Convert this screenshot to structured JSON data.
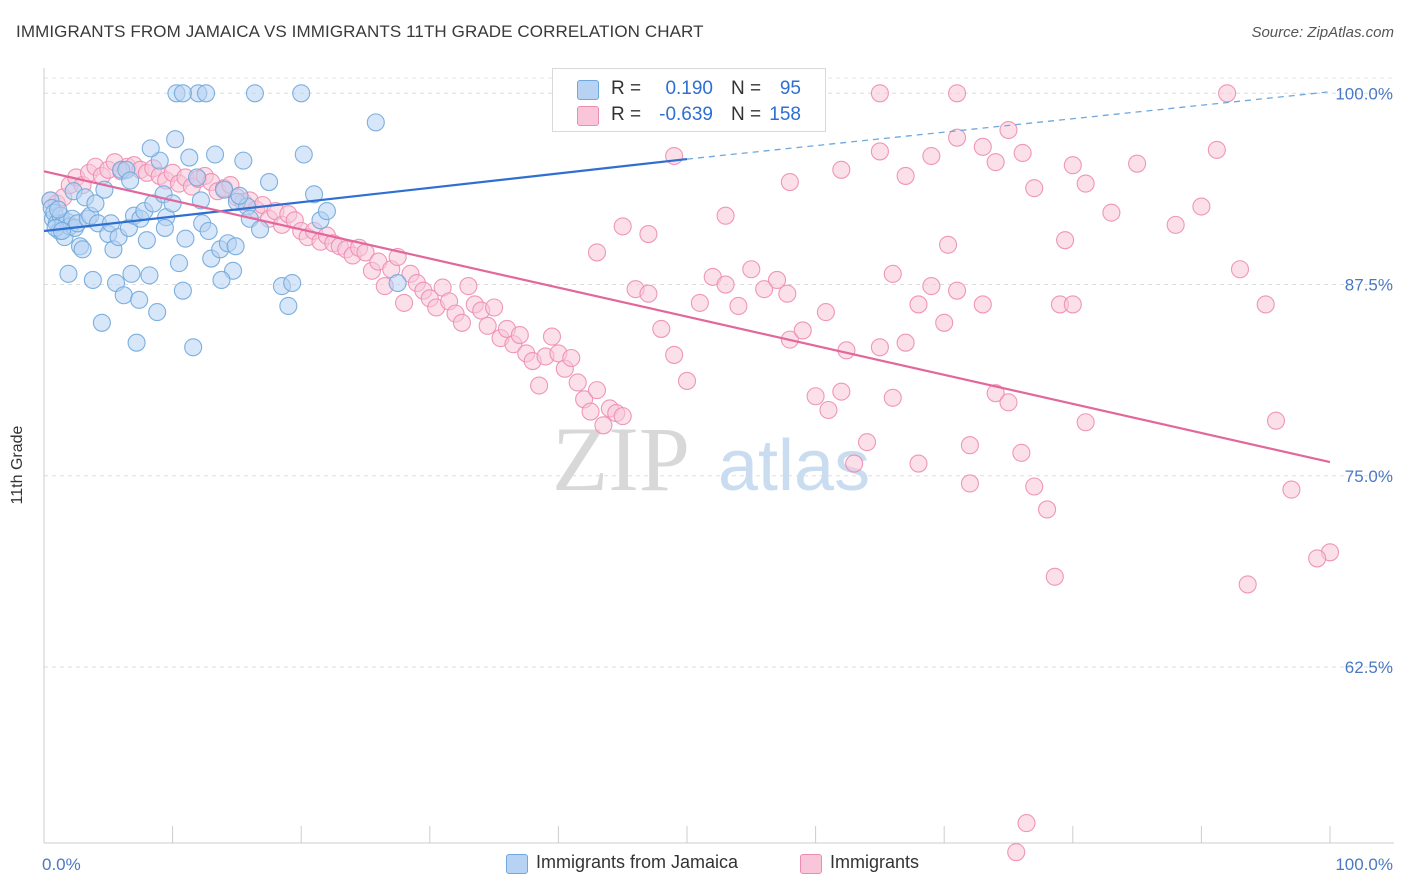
{
  "title": "IMMIGRANTS FROM JAMAICA VS IMMIGRANTS 11TH GRADE CORRELATION CHART",
  "source": "Source: ZipAtlas.com",
  "watermark": {
    "zip": "ZIP",
    "atlas": "atlas"
  },
  "colors": {
    "blue": "#6fa8dc",
    "blue_fill": "#b7d2f3",
    "blue_line": "#2f6fd1",
    "pink": "#ee8cb0",
    "pink_fill": "#f8c6d8",
    "pink_line": "#e2679a",
    "axis_label": "#4a79c4",
    "grid": "#dddddd"
  },
  "legend": {
    "r_label": "R =",
    "n_label": "N =",
    "rows": [
      {
        "r": "0.190",
        "n": "95",
        "color": "#b7d2f3",
        "border": "#6fa8dc"
      },
      {
        "r": "-0.639",
        "n": "158",
        "color": "#f8c6d8",
        "border": "#ee8cb0"
      }
    ]
  },
  "bottom_legend": [
    {
      "label": "Immigrants from Jamaica",
      "color": "#b7d2f3",
      "border": "#6fa8dc"
    },
    {
      "label": "Immigrants",
      "color": "#f8c6d8",
      "border": "#ee8cb0"
    }
  ],
  "chart_data": {
    "type": "scatter",
    "title": "IMMIGRANTS FROM JAMAICA VS IMMIGRANTS 11TH GRADE CORRELATION CHART",
    "xlabel": "",
    "ylabel": "11th Grade",
    "xlim": [
      0,
      100
    ],
    "ylim": [
      51,
      101
    ],
    "x_tick_labels": [
      {
        "value": 0,
        "label": "0.0%"
      },
      {
        "value": 100,
        "label": "100.0%"
      }
    ],
    "y_tick_labels": [
      {
        "value": 100,
        "label": "100.0%"
      },
      {
        "value": 87.5,
        "label": "87.5%"
      },
      {
        "value": 75,
        "label": "75.0%"
      },
      {
        "value": 62.5,
        "label": "62.5%"
      }
    ],
    "grid": "horizontal dashed",
    "legend_placement": "top-center",
    "series": [
      {
        "name": "Immigrants from Jamaica",
        "color": "#6fa8dc",
        "r": 0.19,
        "n": 95,
        "trend": {
          "x": [
            0,
            50
          ],
          "y": [
            91.0,
            95.7
          ],
          "dashed_to": [
            100,
            100.1
          ]
        },
        "points": [
          [
            0.5,
            93
          ],
          [
            0.6,
            92.5
          ],
          [
            0.7,
            91.8
          ],
          [
            0.8,
            92.2
          ],
          [
            1,
            91.5
          ],
          [
            1.2,
            91
          ],
          [
            1.3,
            92
          ],
          [
            1.5,
            91.5
          ],
          [
            1.6,
            90.6
          ],
          [
            1.8,
            91.6
          ],
          [
            2,
            91.3
          ],
          [
            2.2,
            91.8
          ],
          [
            2.4,
            91.2
          ],
          [
            2.6,
            91.5
          ],
          [
            1.1,
            92.4
          ],
          [
            0.9,
            91.2
          ],
          [
            1.4,
            91.0
          ],
          [
            1.9,
            88.2
          ],
          [
            2.3,
            93.6
          ],
          [
            2.8,
            90.0
          ],
          [
            3,
            89.8
          ],
          [
            3.2,
            93.2
          ],
          [
            3.4,
            91.8
          ],
          [
            3.6,
            92.0
          ],
          [
            3.8,
            87.8
          ],
          [
            4,
            92.8
          ],
          [
            4.2,
            91.5
          ],
          [
            4.5,
            85.0
          ],
          [
            4.7,
            93.7
          ],
          [
            5,
            90.8
          ],
          [
            5.2,
            91.5
          ],
          [
            5.4,
            89.8
          ],
          [
            5.6,
            87.6
          ],
          [
            5.8,
            90.6
          ],
          [
            6,
            95.0
          ],
          [
            6.2,
            86.8
          ],
          [
            6.4,
            95.0
          ],
          [
            6.6,
            91.2
          ],
          [
            6.8,
            88.2
          ],
          [
            7,
            92.0
          ],
          [
            7.2,
            83.7
          ],
          [
            7.5,
            91.8
          ],
          [
            7.8,
            92.3
          ],
          [
            8,
            90.4
          ],
          [
            8.2,
            88.1
          ],
          [
            8.5,
            92.8
          ],
          [
            8.8,
            85.7
          ],
          [
            9,
            95.6
          ],
          [
            9.3,
            93.4
          ],
          [
            9.5,
            91.9
          ],
          [
            10,
            92.8
          ],
          [
            10.2,
            97.0
          ],
          [
            10.5,
            88.9
          ],
          [
            10.8,
            87.1
          ],
          [
            11,
            90.5
          ],
          [
            11.3,
            95.8
          ],
          [
            11.6,
            83.4
          ],
          [
            12,
            100
          ],
          [
            12.3,
            91.5
          ],
          [
            12.6,
            100
          ],
          [
            13,
            89.2
          ],
          [
            13.3,
            96.0
          ],
          [
            13.7,
            89.8
          ],
          [
            14,
            93.7
          ],
          [
            14.3,
            90.2
          ],
          [
            14.7,
            88.4
          ],
          [
            15,
            92.9
          ],
          [
            15.5,
            95.6
          ],
          [
            15.8,
            92.6
          ],
          [
            16,
            91.8
          ],
          [
            16.4,
            100
          ],
          [
            16.8,
            91.1
          ],
          [
            18.5,
            87.4
          ],
          [
            19,
            86.1
          ],
          [
            19.3,
            87.6
          ],
          [
            20,
            100
          ],
          [
            20.2,
            96.0
          ],
          [
            21,
            93.4
          ],
          [
            21.5,
            91.7
          ],
          [
            22,
            92.3
          ],
          [
            10.3,
            100
          ],
          [
            10.8,
            100
          ],
          [
            12.2,
            93.0
          ],
          [
            9.4,
            91.2
          ],
          [
            8.3,
            96.4
          ],
          [
            7.4,
            86.5
          ],
          [
            17.5,
            94.2
          ],
          [
            13.8,
            87.8
          ],
          [
            14.9,
            90.0
          ],
          [
            11.9,
            94.5
          ],
          [
            6.7,
            94.3
          ],
          [
            15.2,
            93.3
          ],
          [
            12.8,
            91.0
          ],
          [
            25.8,
            98.1
          ],
          [
            27.5,
            87.6
          ]
        ]
      },
      {
        "name": "Immigrants",
        "color": "#ee8cb0",
        "r": -0.639,
        "n": 158,
        "trend": {
          "x": [
            0,
            100
          ],
          "y": [
            94.9,
            75.9
          ]
        },
        "points": [
          [
            0.5,
            93.0
          ],
          [
            1,
            92.8
          ],
          [
            1.5,
            93.2
          ],
          [
            2,
            94.0
          ],
          [
            2.5,
            94.5
          ],
          [
            3,
            94.0
          ],
          [
            3.5,
            94.8
          ],
          [
            4,
            95.2
          ],
          [
            4.5,
            94.6
          ],
          [
            5,
            95.0
          ],
          [
            5.5,
            95.5
          ],
          [
            6,
            94.9
          ],
          [
            6.5,
            95.2
          ],
          [
            7,
            95.3
          ],
          [
            7.5,
            95.0
          ],
          [
            8,
            94.8
          ],
          [
            8.5,
            95.1
          ],
          [
            9,
            94.6
          ],
          [
            9.5,
            94.3
          ],
          [
            10,
            94.8
          ],
          [
            10.5,
            94.1
          ],
          [
            11,
            94.5
          ],
          [
            11.5,
            93.9
          ],
          [
            12,
            94.4
          ],
          [
            12.5,
            94.6
          ],
          [
            13,
            94.2
          ],
          [
            13.5,
            93.6
          ],
          [
            14,
            93.8
          ],
          [
            14.5,
            94.0
          ],
          [
            15,
            93.2
          ],
          [
            15.5,
            92.9
          ],
          [
            16,
            93.0
          ],
          [
            16.5,
            92.4
          ],
          [
            17,
            92.7
          ],
          [
            17.5,
            91.8
          ],
          [
            18,
            92.3
          ],
          [
            18.5,
            91.4
          ],
          [
            19,
            92.1
          ],
          [
            19.5,
            91.7
          ],
          [
            20,
            91.0
          ],
          [
            20.5,
            90.6
          ],
          [
            21,
            91.0
          ],
          [
            21.5,
            90.3
          ],
          [
            22,
            90.7
          ],
          [
            22.5,
            90.2
          ],
          [
            23,
            90.0
          ],
          [
            23.5,
            89.8
          ],
          [
            24,
            89.4
          ],
          [
            24.5,
            89.9
          ],
          [
            25,
            89.6
          ],
          [
            25.5,
            88.4
          ],
          [
            26,
            89.0
          ],
          [
            26.5,
            87.4
          ],
          [
            27,
            88.5
          ],
          [
            27.5,
            89.3
          ],
          [
            28,
            86.3
          ],
          [
            28.5,
            88.2
          ],
          [
            29,
            87.6
          ],
          [
            29.5,
            87.1
          ],
          [
            30,
            86.6
          ],
          [
            30.5,
            86.0
          ],
          [
            31,
            87.3
          ],
          [
            31.5,
            86.4
          ],
          [
            32,
            85.6
          ],
          [
            32.5,
            85.0
          ],
          [
            33,
            87.4
          ],
          [
            33.5,
            86.2
          ],
          [
            34,
            85.8
          ],
          [
            34.5,
            84.8
          ],
          [
            35,
            86.0
          ],
          [
            35.5,
            84.0
          ],
          [
            36,
            84.6
          ],
          [
            36.5,
            83.6
          ],
          [
            37,
            84.2
          ],
          [
            37.5,
            83.0
          ],
          [
            38,
            82.5
          ],
          [
            38.5,
            80.9
          ],
          [
            39,
            82.8
          ],
          [
            39.5,
            84.1
          ],
          [
            40,
            83.0
          ],
          [
            40.5,
            82.0
          ],
          [
            41,
            82.7
          ],
          [
            41.5,
            81.1
          ],
          [
            42,
            80.0
          ],
          [
            42.5,
            79.2
          ],
          [
            43,
            80.6
          ],
          [
            43.5,
            78.3
          ],
          [
            44,
            79.4
          ],
          [
            44.5,
            79.1
          ],
          [
            45,
            78.9
          ],
          [
            46,
            87.2
          ],
          [
            47,
            86.9
          ],
          [
            48,
            84.6
          ],
          [
            49,
            82.9
          ],
          [
            50,
            81.2
          ],
          [
            51,
            86.3
          ],
          [
            52,
            88.0
          ],
          [
            53,
            87.5
          ],
          [
            54,
            86.1
          ],
          [
            55,
            88.5
          ],
          [
            56,
            87.2
          ],
          [
            57,
            87.8
          ],
          [
            58,
            83.9
          ],
          [
            59,
            84.5
          ],
          [
            60,
            80.2
          ],
          [
            61,
            79.3
          ],
          [
            62,
            80.5
          ],
          [
            63,
            75.8
          ],
          [
            64,
            77.2
          ],
          [
            65,
            83.4
          ],
          [
            66,
            80.1
          ],
          [
            67,
            83.7
          ],
          [
            68,
            86.2
          ],
          [
            69,
            87.4
          ],
          [
            70,
            85.0
          ],
          [
            71,
            87.1
          ],
          [
            72,
            77.0
          ],
          [
            73,
            86.2
          ],
          [
            74,
            80.4
          ],
          [
            75,
            79.8
          ],
          [
            76,
            76.5
          ],
          [
            77,
            74.3
          ],
          [
            78,
            72.8
          ],
          [
            79,
            86.2
          ],
          [
            80,
            86.2
          ],
          [
            81,
            78.5
          ],
          [
            76.4,
            52.3
          ],
          [
            75.6,
            50.4
          ],
          [
            78.6,
            68.4
          ],
          [
            100,
            70.0
          ],
          [
            62,
            95.0
          ],
          [
            65,
            96.2
          ],
          [
            67,
            94.6
          ],
          [
            69,
            95.9
          ],
          [
            71,
            97.1
          ],
          [
            73,
            96.5
          ],
          [
            74,
            95.5
          ],
          [
            75,
            97.6
          ],
          [
            77,
            93.8
          ],
          [
            80,
            95.3
          ],
          [
            81,
            94.1
          ],
          [
            83,
            92.2
          ],
          [
            85,
            95.4
          ],
          [
            88,
            91.4
          ],
          [
            90,
            92.6
          ],
          [
            93,
            88.5
          ],
          [
            95,
            86.2
          ],
          [
            97,
            74.1
          ],
          [
            99,
            69.6
          ],
          [
            92,
            100
          ],
          [
            65,
            100
          ],
          [
            71,
            100
          ],
          [
            72,
            74.5
          ],
          [
            68,
            75.8
          ],
          [
            58,
            94.2
          ],
          [
            53,
            92.0
          ],
          [
            49,
            95.9
          ],
          [
            47,
            90.8
          ],
          [
            45,
            91.3
          ],
          [
            43,
            89.6
          ],
          [
            95.8,
            78.6
          ],
          [
            93.6,
            67.9
          ],
          [
            91.2,
            96.3
          ],
          [
            57.8,
            86.9
          ],
          [
            60.8,
            85.7
          ],
          [
            62.4,
            83.2
          ],
          [
            66,
            88.2
          ],
          [
            70.3,
            90.1
          ],
          [
            76.1,
            96.1
          ],
          [
            79.4,
            90.4
          ]
        ]
      }
    ]
  }
}
